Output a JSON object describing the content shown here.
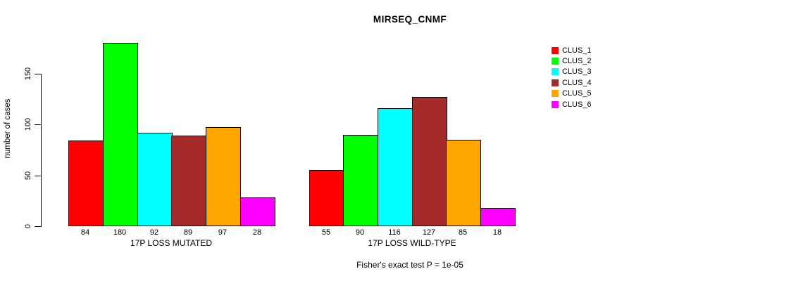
{
  "chart_data": {
    "type": "bar",
    "title": "MIRSEQ_CNMF",
    "ylabel": "number of cases",
    "footnote": "Fisher's exact test P = 1e-05",
    "yticks": [
      0,
      50,
      100,
      150
    ],
    "ylim": [
      0,
      150
    ],
    "grid": false,
    "legend_position": "right",
    "bar_value_labels_visible": true,
    "categories": [
      "17P LOSS MUTATED",
      "17P LOSS WILD-TYPE"
    ],
    "series": [
      {
        "name": "CLUS_1",
        "color": "#FF0000",
        "values": [
          84,
          55
        ]
      },
      {
        "name": "CLUS_2",
        "color": "#00FF00",
        "values": [
          180,
          90
        ]
      },
      {
        "name": "CLUS_3",
        "color": "#00FFFF",
        "values": [
          92,
          116
        ]
      },
      {
        "name": "CLUS_4",
        "color": "#A52A2A",
        "values": [
          89,
          127
        ]
      },
      {
        "name": "CLUS_5",
        "color": "#FFA500",
        "values": [
          97,
          85
        ]
      },
      {
        "name": "CLUS_6",
        "color": "#FF00FF",
        "values": [
          28,
          18
        ]
      }
    ]
  }
}
